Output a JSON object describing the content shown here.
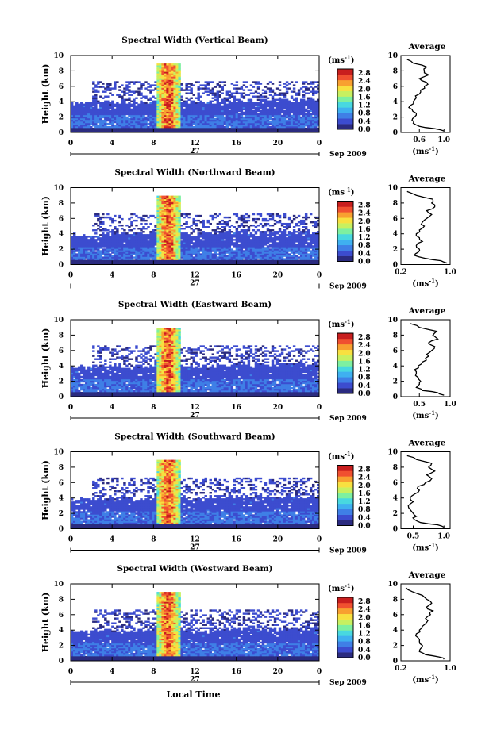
{
  "xlabel": "Local Time",
  "day_label": "27",
  "date_label": "Sep 2009",
  "x_ticks": [
    "0",
    "4",
    "8",
    "12",
    "16",
    "20",
    "0"
  ],
  "y_label": "Height (km)",
  "y_ticks": [
    "0",
    "2",
    "4",
    "6",
    "8",
    "10"
  ],
  "colorbar": {
    "unit_base": "(ms",
    "unit_exp": "-1",
    "unit_close": ")",
    "ticks": [
      "2.8",
      "2.4",
      "2.0",
      "1.6",
      "1.2",
      "0.8",
      "0.4",
      "0.0"
    ],
    "range": [
      0,
      3.0
    ],
    "colors": [
      "#2b2b80",
      "#3c4ccf",
      "#3f7fe6",
      "#3fb0f0",
      "#48d8e0",
      "#7ef0a0",
      "#c8f060",
      "#f8e040",
      "#f8a030",
      "#f05030",
      "#c81e1e"
    ]
  },
  "avg_title": "Average",
  "avg_unit_base": "(ms",
  "avg_unit_exp": "-1",
  "avg_unit_close": ")",
  "chart_data": [
    {
      "type": "heatmap",
      "title": "Spectral Width (Vertical Beam)",
      "x_range_hours": [
        0,
        24
      ],
      "y_range_km": [
        0,
        10
      ],
      "profile": {
        "xlabel_ticks": [
          "0.6",
          "1.0"
        ],
        "x_range": [
          0.3,
          1.1
        ],
        "height_km": [
          0.2,
          0.5,
          0.8,
          1.2,
          1.6,
          2.0,
          2.5,
          3.0,
          3.5,
          4.0,
          4.5,
          5.0,
          5.5,
          6.0,
          6.5,
          7.0,
          7.5,
          8.0,
          8.5,
          9.0,
          9.5
        ],
        "width_ms": [
          1.0,
          0.85,
          0.6,
          0.5,
          0.48,
          0.52,
          0.55,
          0.48,
          0.45,
          0.5,
          0.55,
          0.6,
          0.62,
          0.68,
          0.72,
          0.6,
          0.75,
          0.68,
          0.72,
          0.5,
          0.4
        ]
      }
    },
    {
      "type": "heatmap",
      "title": "Spectral Width (Northward Beam)",
      "x_range_hours": [
        0,
        24
      ],
      "y_range_km": [
        0,
        10
      ],
      "profile": {
        "xlabel_ticks": [
          "0.2",
          "1.0"
        ],
        "x_range": [
          0.2,
          1.0
        ],
        "height_km": [
          0.2,
          0.5,
          0.8,
          1.2,
          1.6,
          2.0,
          2.5,
          3.0,
          3.5,
          4.0,
          4.5,
          5.0,
          5.5,
          6.0,
          6.5,
          7.0,
          7.5,
          8.0,
          8.5,
          9.0,
          9.5
        ],
        "width_ms": [
          0.95,
          0.85,
          0.6,
          0.42,
          0.48,
          0.5,
          0.45,
          0.55,
          0.5,
          0.45,
          0.5,
          0.58,
          0.55,
          0.62,
          0.7,
          0.62,
          0.75,
          0.7,
          0.72,
          0.45,
          0.3
        ]
      }
    },
    {
      "type": "heatmap",
      "title": "Spectral Width (Eastward Beam)",
      "x_range_hours": [
        0,
        24
      ],
      "y_range_km": [
        0,
        10
      ],
      "profile": {
        "xlabel_ticks": [
          "0.5",
          "1.0"
        ],
        "x_range": [
          0.2,
          1.0
        ],
        "height_km": [
          0.2,
          0.5,
          0.8,
          1.2,
          1.6,
          2.0,
          2.5,
          3.0,
          3.5,
          4.0,
          4.5,
          5.0,
          5.5,
          6.0,
          6.5,
          7.0,
          7.5,
          8.0,
          8.5,
          9.0,
          9.5
        ],
        "width_ms": [
          0.9,
          0.8,
          0.55,
          0.45,
          0.5,
          0.52,
          0.48,
          0.45,
          0.42,
          0.48,
          0.55,
          0.6,
          0.62,
          0.7,
          0.75,
          0.65,
          0.8,
          0.72,
          0.78,
          0.5,
          0.35
        ]
      }
    },
    {
      "type": "heatmap",
      "title": "Spectral Width (Southward Beam)",
      "x_range_hours": [
        0,
        24
      ],
      "y_range_km": [
        0,
        10
      ],
      "profile": {
        "xlabel_ticks": [
          "0.5",
          "1.0"
        ],
        "x_range": [
          0.3,
          1.1
        ],
        "height_km": [
          0.2,
          0.5,
          0.8,
          1.2,
          1.6,
          2.0,
          2.5,
          3.0,
          3.5,
          4.0,
          4.5,
          5.0,
          5.5,
          6.0,
          6.5,
          7.0,
          7.5,
          8.0,
          8.5,
          9.0,
          9.5
        ],
        "width_ms": [
          1.0,
          0.9,
          0.62,
          0.52,
          0.55,
          0.5,
          0.45,
          0.42,
          0.5,
          0.45,
          0.52,
          0.6,
          0.58,
          0.7,
          0.8,
          0.72,
          0.85,
          0.75,
          0.8,
          0.55,
          0.4
        ]
      }
    },
    {
      "type": "heatmap",
      "title": "Spectral Width (Westward Beam)",
      "x_range_hours": [
        0,
        24
      ],
      "y_range_km": [
        0,
        10
      ],
      "profile": {
        "xlabel_ticks": [
          "0.2",
          "1.0"
        ],
        "x_range": [
          0.2,
          1.0
        ],
        "height_km": [
          0.2,
          0.5,
          0.8,
          1.2,
          1.6,
          2.0,
          2.5,
          3.0,
          3.5,
          4.0,
          4.5,
          5.0,
          5.5,
          6.0,
          6.5,
          7.0,
          7.5,
          8.0,
          8.5,
          9.0,
          9.5
        ],
        "width_ms": [
          0.9,
          0.82,
          0.6,
          0.5,
          0.52,
          0.55,
          0.5,
          0.48,
          0.45,
          0.5,
          0.55,
          0.62,
          0.6,
          0.68,
          0.72,
          0.62,
          0.7,
          0.62,
          0.55,
          0.38,
          0.28
        ]
      }
    }
  ]
}
